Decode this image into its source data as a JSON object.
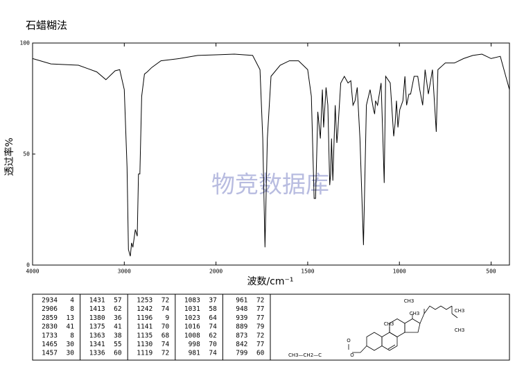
{
  "chart_data": {
    "type": "line",
    "title": "石蜡糊法",
    "watermark": "物竞数据库",
    "xlabel": "波数/cm⁻¹",
    "ylabel": "透过率%",
    "color": "#000000",
    "xlim": [
      4000,
      400
    ],
    "xbreak": 2000,
    "xticks": [
      4000,
      3000,
      2000,
      1500,
      1000,
      500
    ],
    "ylim": [
      0,
      100
    ],
    "yticks": [
      0,
      50,
      100
    ],
    "x": [
      4000,
      3800,
      3500,
      3300,
      3200,
      3100,
      3050,
      3000,
      2970,
      2955,
      2934,
      2920,
      2906,
      2880,
      2859,
      2845,
      2830,
      2810,
      2780,
      2750,
      2700,
      2600,
      2400,
      2200,
      2000,
      1900,
      1800,
      1760,
      1745,
      1733,
      1720,
      1700,
      1650,
      1600,
      1550,
      1500,
      1480,
      1465,
      1457,
      1445,
      1431,
      1420,
      1413,
      1400,
      1390,
      1380,
      1375,
      1370,
      1363,
      1350,
      1341,
      1336,
      1320,
      1300,
      1280,
      1265,
      1253,
      1242,
      1230,
      1215,
      1196,
      1180,
      1160,
      1141,
      1135,
      1130,
      1119,
      1100,
      1090,
      1083,
      1075,
      1050,
      1031,
      1023,
      1016,
      1008,
      998,
      981,
      970,
      961,
      948,
      939,
      920,
      900,
      889,
      873,
      860,
      842,
      820,
      799,
      790,
      750,
      700,
      650,
      600,
      550,
      500,
      450,
      420,
      400
    ],
    "values": [
      93,
      90.6,
      90,
      87,
      83.5,
      87.5,
      88,
      79,
      44,
      7,
      4,
      10,
      8,
      16,
      13,
      41,
      41,
      76,
      86,
      87,
      89,
      92,
      93,
      94.4,
      94.7,
      95,
      94.4,
      88,
      57,
      8,
      57,
      85,
      90,
      92,
      92,
      88,
      76,
      30,
      30,
      69,
      57,
      79,
      62,
      80,
      72,
      36,
      41,
      57,
      38,
      72,
      55,
      60,
      82,
      85,
      82,
      83,
      72,
      74,
      80,
      57,
      9,
      72,
      79,
      70,
      68,
      74,
      72,
      82,
      57,
      37,
      85,
      82,
      58,
      64,
      74,
      62,
      70,
      74,
      85,
      72,
      77,
      77,
      85,
      85,
      79,
      72,
      88,
      77,
      88,
      60,
      88,
      91,
      91,
      93,
      94.4,
      95,
      93,
      94,
      85,
      79
    ]
  },
  "peak_table": {
    "columns": [
      [
        [
          2934,
          4
        ],
        [
          2906,
          8
        ],
        [
          2859,
          13
        ],
        [
          2830,
          41
        ],
        [
          1733,
          8
        ],
        [
          1465,
          30
        ],
        [
          1457,
          30
        ]
      ],
      [
        [
          1431,
          57
        ],
        [
          1413,
          62
        ],
        [
          1380,
          36
        ],
        [
          1375,
          41
        ],
        [
          1363,
          38
        ],
        [
          1341,
          55
        ],
        [
          1336,
          60
        ]
      ],
      [
        [
          1253,
          72
        ],
        [
          1242,
          74
        ],
        [
          1196,
          9
        ],
        [
          1141,
          70
        ],
        [
          1135,
          68
        ],
        [
          1130,
          74
        ],
        [
          1119,
          72
        ]
      ],
      [
        [
          1083,
          37
        ],
        [
          1031,
          58
        ],
        [
          1023,
          64
        ],
        [
          1016,
          74
        ],
        [
          1008,
          62
        ],
        [
          998,
          70
        ],
        [
          981,
          74
        ]
      ],
      [
        [
          961,
          72
        ],
        [
          948,
          77
        ],
        [
          939,
          77
        ],
        [
          889,
          79
        ],
        [
          873,
          72
        ],
        [
          842,
          77
        ],
        [
          799,
          60
        ]
      ]
    ]
  },
  "structure": {
    "labels": [
      "CH3",
      "CH3",
      "CH3",
      "CH3",
      "CH3",
      "O",
      "CH3—CH2—C",
      "O"
    ]
  }
}
